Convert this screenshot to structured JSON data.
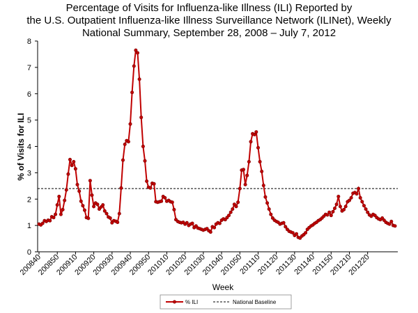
{
  "chart_data": {
    "type": "line",
    "title_lines": [
      "Percentage of Visits for Influenza-like Illness (ILI) Reported by",
      "the U.S. Outpatient Influenza-like Illness Surveillance Network (ILINet), Weekly",
      "National Summary, September 28, 2008 – July 7, 2012"
    ],
    "xlabel": "Week",
    "ylabel": "% of Visits for ILI",
    "ylim": [
      0,
      8
    ],
    "yticks": [
      "0",
      "1",
      "2",
      "3",
      "4",
      "5",
      "6",
      "7",
      "8"
    ],
    "xtick_labels": [
      "200840",
      "200850",
      "200910",
      "200920",
      "200930",
      "200940",
      "200950",
      "201010",
      "201020",
      "201030",
      "201040",
      "201050",
      "201110",
      "201120",
      "201130",
      "201140",
      "201150",
      "201210",
      "201220"
    ],
    "grid": false,
    "legend_position": "bottom",
    "series": [
      {
        "name": "% ILI",
        "color": "#c00000",
        "values": [
          1.05,
          1.02,
          1.08,
          1.18,
          1.15,
          1.2,
          1.18,
          1.33,
          1.3,
          1.42,
          1.78,
          2.1,
          1.42,
          1.6,
          1.95,
          2.35,
          2.95,
          3.5,
          3.28,
          3.42,
          3.15,
          2.55,
          2.3,
          1.92,
          1.75,
          1.58,
          1.3,
          1.27,
          2.7,
          2.15,
          1.72,
          1.85,
          1.8,
          1.62,
          1.7,
          1.78,
          1.55,
          1.45,
          1.32,
          1.28,
          1.1,
          1.18,
          1.16,
          1.12,
          1.45,
          2.42,
          3.48,
          4.08,
          4.22,
          4.18,
          4.85,
          6.05,
          7.05,
          7.65,
          7.55,
          6.55,
          5.1,
          4.0,
          3.45,
          2.68,
          2.45,
          2.42,
          2.6,
          2.58,
          1.9,
          1.88,
          1.9,
          1.92,
          2.1,
          2.05,
          1.92,
          1.95,
          1.9,
          1.88,
          1.6,
          1.22,
          1.15,
          1.12,
          1.1,
          1.12,
          1.05,
          1.1,
          1.0,
          1.05,
          1.08,
          0.92,
          0.98,
          0.9,
          0.88,
          0.85,
          0.82,
          0.85,
          0.88,
          0.8,
          0.75,
          0.95,
          0.92,
          1.05,
          1.1,
          1.08,
          1.2,
          1.25,
          1.22,
          1.3,
          1.38,
          1.5,
          1.62,
          1.8,
          1.72,
          1.88,
          2.4,
          3.1,
          3.12,
          2.55,
          2.9,
          3.42,
          4.18,
          4.48,
          4.45,
          4.55,
          3.95,
          3.42,
          3.05,
          2.52,
          2.08,
          1.85,
          1.62,
          1.42,
          1.28,
          1.2,
          1.15,
          1.12,
          1.05,
          1.08,
          1.1,
          0.95,
          0.85,
          0.78,
          0.75,
          0.72,
          0.62,
          0.68,
          0.55,
          0.52,
          0.6,
          0.65,
          0.72,
          0.85,
          0.92,
          0.98,
          1.02,
          1.08,
          1.12,
          1.18,
          1.22,
          1.28,
          1.35,
          1.42,
          1.4,
          1.5,
          1.38,
          1.52,
          1.65,
          1.8,
          2.1,
          1.72,
          1.55,
          1.6,
          1.72,
          1.9,
          1.95,
          2.05,
          2.22,
          2.25,
          2.2,
          2.4,
          2.05,
          1.9,
          1.75,
          1.62,
          1.5,
          1.4,
          1.35,
          1.42,
          1.38,
          1.3,
          1.25,
          1.22,
          1.28,
          1.2,
          1.12,
          1.08,
          1.05,
          1.15,
          1.0,
          0.98
        ]
      },
      {
        "name": "National Baseline",
        "style": "dashed",
        "color": "#000000",
        "constant": 2.4
      }
    ]
  }
}
